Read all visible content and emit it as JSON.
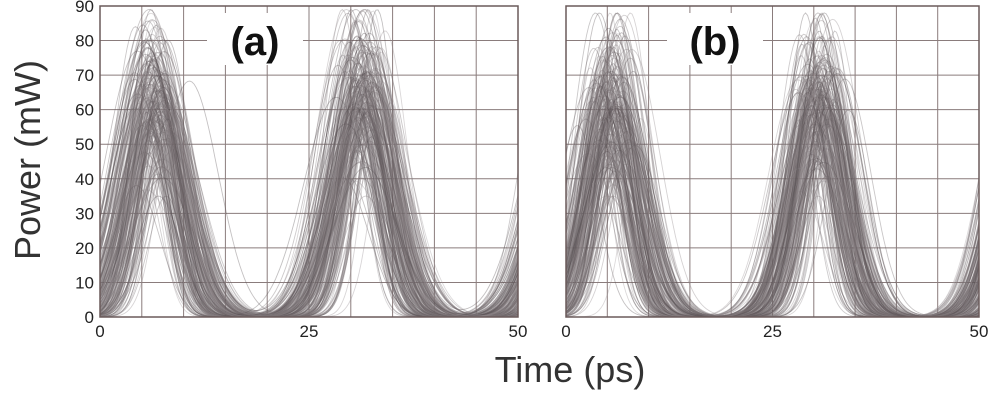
{
  "figure": {
    "ylabel": "Power (mW)",
    "xlabel": "Time (ps)"
  },
  "chart_data": [
    {
      "type": "line",
      "panel_label": "(a)",
      "title": "",
      "xlabel": "Time (ps)",
      "ylabel": "Power (mW)",
      "xlim": [
        0,
        50
      ],
      "ylim": [
        0,
        90
      ],
      "x_ticks": [
        0,
        25,
        50
      ],
      "y_ticks": [
        0,
        10,
        20,
        30,
        40,
        50,
        60,
        70,
        80,
        90
      ],
      "grid": true,
      "description_of_marks": "eye diagram: overlaid pulse traces",
      "pulses": [
        {
          "center": 6.5,
          "peak_range": [
            35,
            89
          ],
          "fwhm_range": [
            4.5,
            9.5
          ]
        },
        {
          "center": 31.5,
          "peak_range": [
            35,
            89
          ],
          "fwhm_range": [
            4.5,
            9.5
          ]
        }
      ],
      "trace_count": 220,
      "trace_color": "#6e6468"
    },
    {
      "type": "line",
      "panel_label": "(b)",
      "title": "",
      "xlabel": "Time (ps)",
      "ylabel": "",
      "xlim": [
        0,
        50
      ],
      "ylim": [
        0,
        90
      ],
      "x_ticks": [
        0,
        25,
        50
      ],
      "y_ticks": [],
      "grid": true,
      "description_of_marks": "eye diagram: overlaid pulse traces",
      "pulses": [
        {
          "center": 5.5,
          "peak_range": [
            35,
            88
          ],
          "fwhm_range": [
            4.5,
            8.5
          ]
        },
        {
          "center": 30.5,
          "peak_range": [
            35,
            88
          ],
          "fwhm_range": [
            4.5,
            8.5
          ]
        }
      ],
      "trace_count": 220,
      "trace_color": "#6e6468"
    }
  ]
}
